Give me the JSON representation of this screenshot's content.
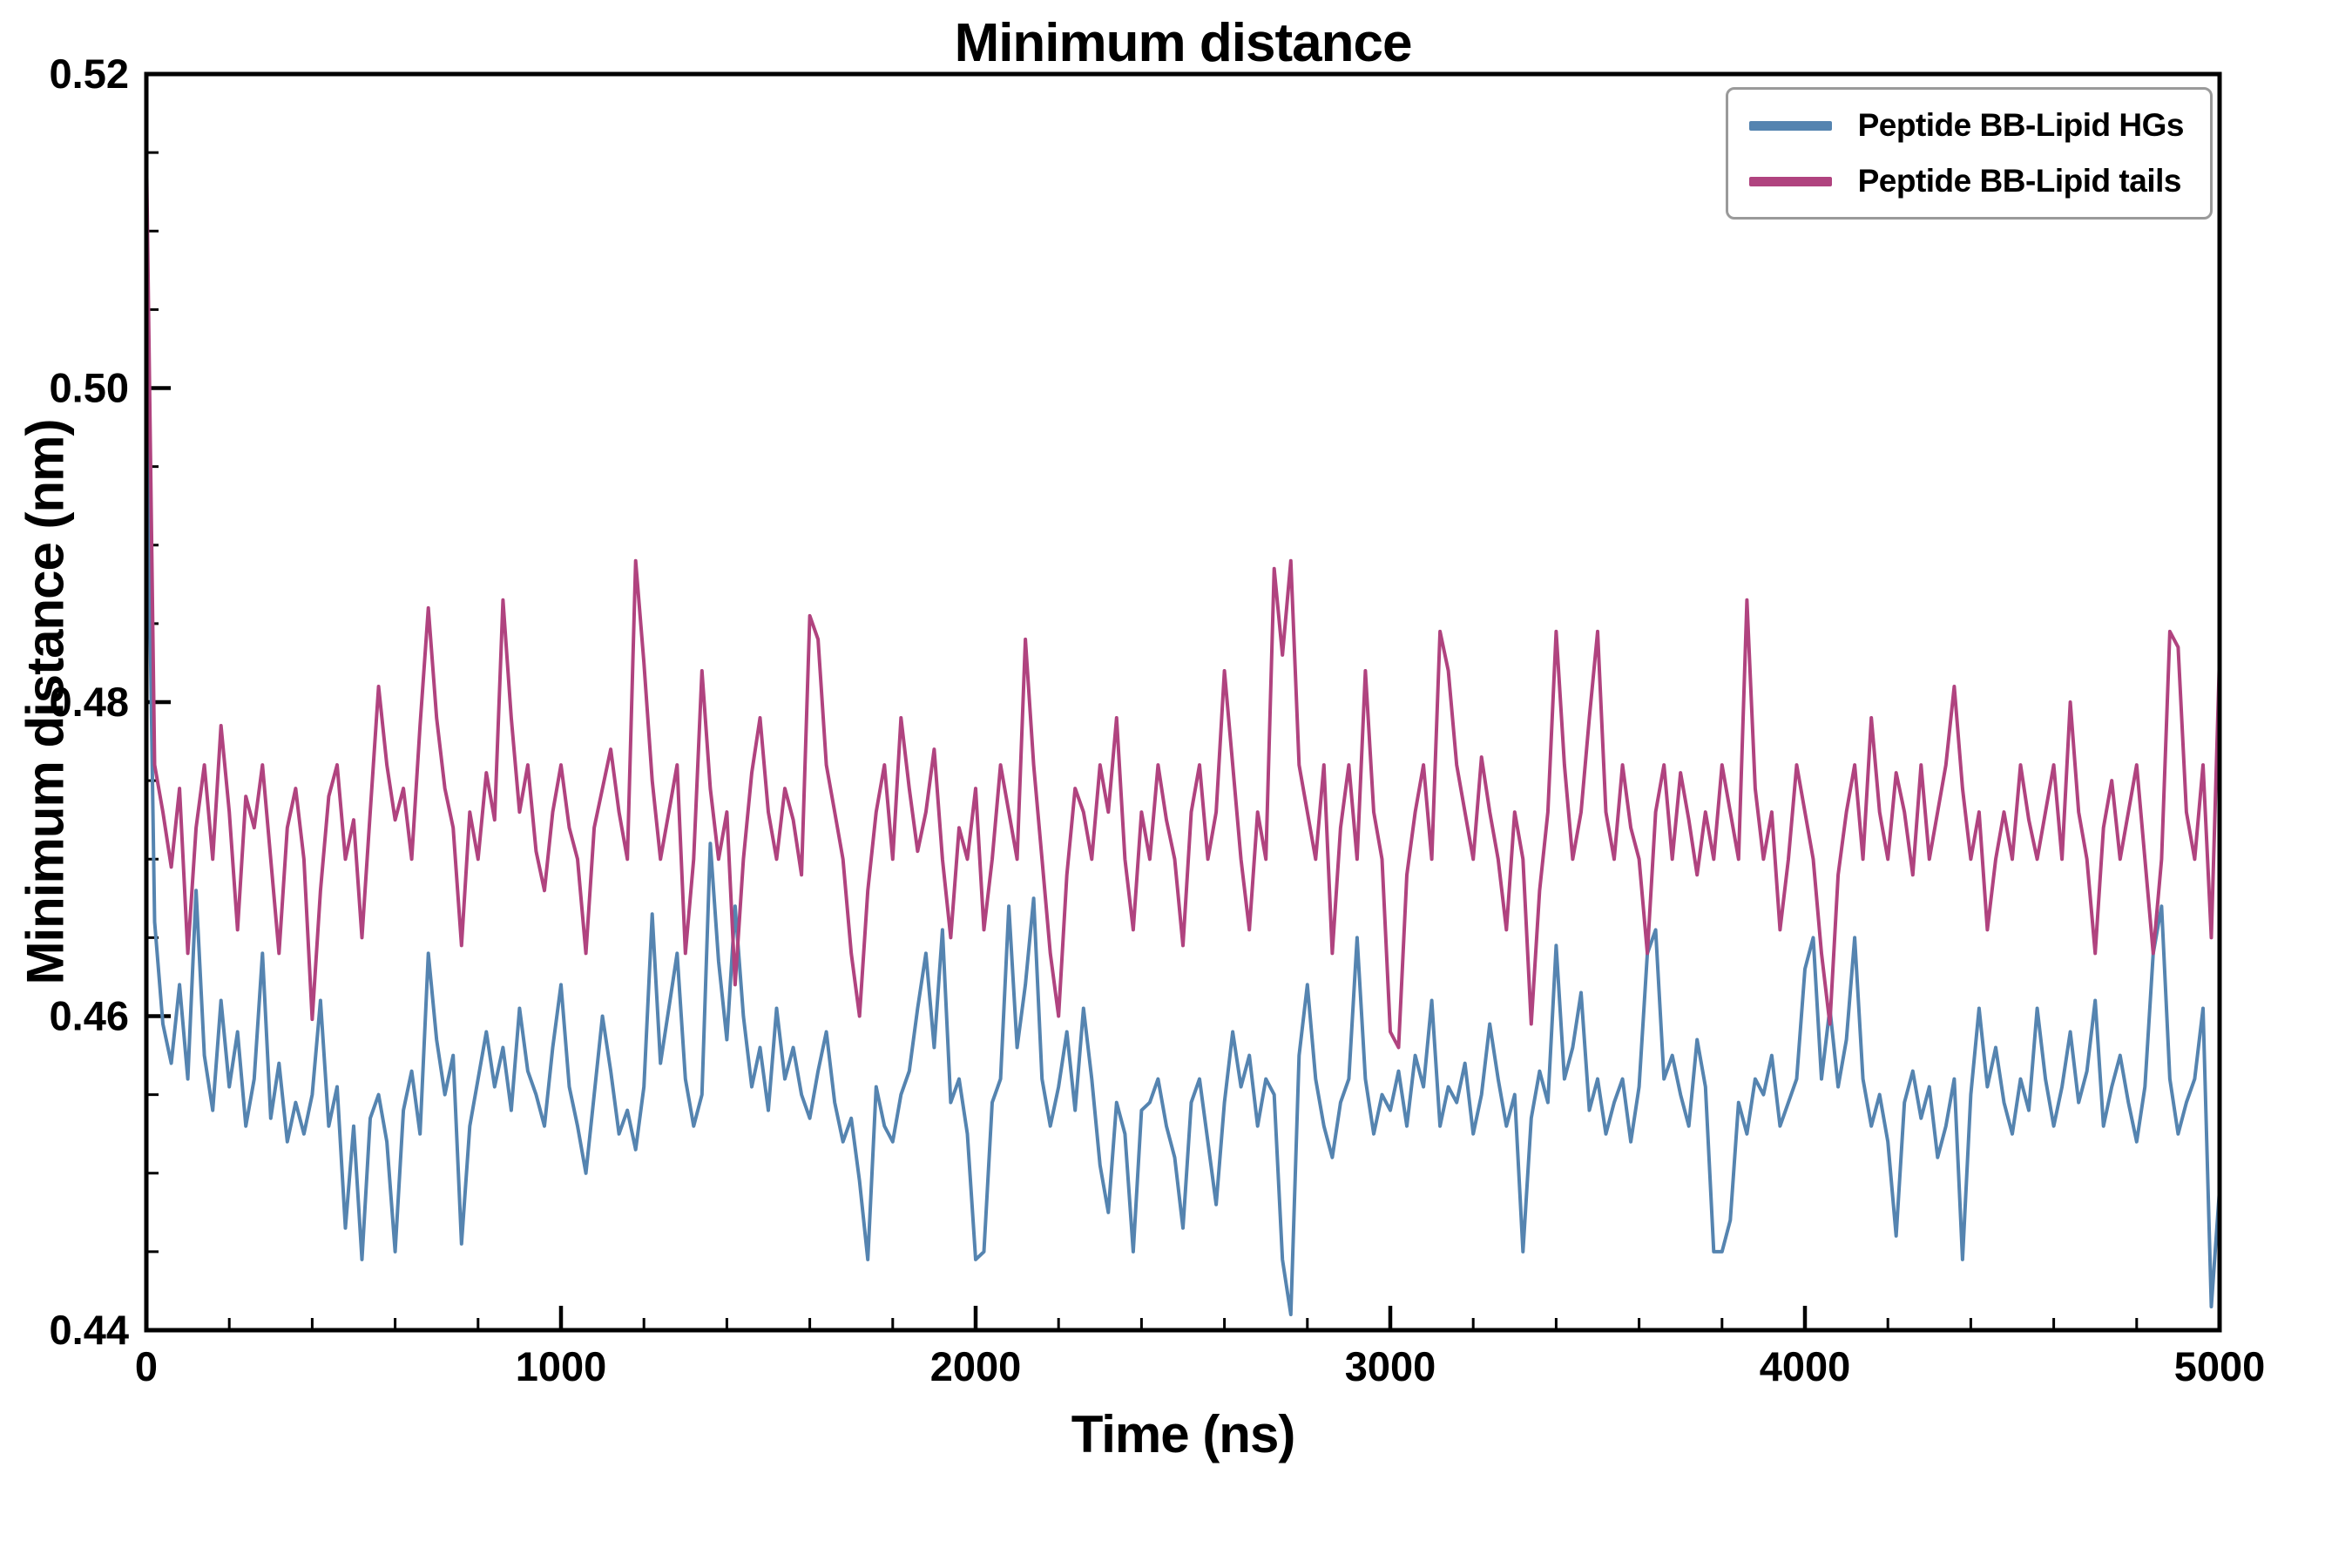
{
  "figure": {
    "background": "#ffffff",
    "frame_color": "#000000"
  },
  "chart_data": {
    "type": "line",
    "title": "Minimum distance",
    "xlabel": "Time (ns)",
    "ylabel": "Minimum distance (nm)",
    "xlim": [
      0,
      5000
    ],
    "ylim": [
      0.44,
      0.52
    ],
    "x_ticks": [
      0,
      1000,
      2000,
      3000,
      4000,
      5000
    ],
    "x_tick_labels": [
      "0",
      "1000",
      "2000",
      "3000",
      "4000",
      "5000"
    ],
    "x_minor_step": 200,
    "y_ticks": [
      0.44,
      0.46,
      0.48,
      0.5,
      0.52
    ],
    "y_tick_labels": [
      "0.44",
      "0.46",
      "0.48",
      "0.50",
      "0.52"
    ],
    "y_minor_step": 0.005,
    "grid": false,
    "legend_position": "upper right",
    "x_start": 0,
    "x_step": 20,
    "series": [
      {
        "name": "Peptide BB-Lipid HGs",
        "color": "#5584b0",
        "values": [
          0.5005,
          0.466,
          0.4595,
          0.457,
          0.462,
          0.456,
          0.468,
          0.4575,
          0.454,
          0.461,
          0.4555,
          0.459,
          0.453,
          0.456,
          0.464,
          0.4535,
          0.457,
          0.452,
          0.4545,
          0.4525,
          0.455,
          0.461,
          0.453,
          0.4555,
          0.4465,
          0.453,
          0.4445,
          0.4535,
          0.455,
          0.452,
          0.445,
          0.454,
          0.4565,
          0.4525,
          0.464,
          0.4585,
          0.455,
          0.4575,
          0.4455,
          0.453,
          0.456,
          0.459,
          0.4555,
          0.458,
          0.454,
          0.4605,
          0.4565,
          0.455,
          0.453,
          0.458,
          0.462,
          0.4555,
          0.453,
          0.45,
          0.455,
          0.46,
          0.4565,
          0.4525,
          0.454,
          0.4515,
          0.4555,
          0.4665,
          0.457,
          0.4605,
          0.464,
          0.456,
          0.453,
          0.455,
          0.471,
          0.4635,
          0.4585,
          0.467,
          0.46,
          0.4555,
          0.458,
          0.454,
          0.4605,
          0.456,
          0.458,
          0.455,
          0.4535,
          0.4565,
          0.459,
          0.4545,
          0.452,
          0.4535,
          0.4495,
          0.4445,
          0.4555,
          0.453,
          0.452,
          0.455,
          0.4565,
          0.4605,
          0.464,
          0.458,
          0.4655,
          0.4545,
          0.456,
          0.4525,
          0.4445,
          0.445,
          0.4545,
          0.456,
          0.467,
          0.458,
          0.462,
          0.4675,
          0.456,
          0.453,
          0.4555,
          0.459,
          0.454,
          0.4605,
          0.456,
          0.4505,
          0.4475,
          0.4545,
          0.4525,
          0.445,
          0.454,
          0.4545,
          0.456,
          0.453,
          0.451,
          0.4465,
          0.4545,
          0.456,
          0.452,
          0.448,
          0.4545,
          0.459,
          0.4555,
          0.4575,
          0.453,
          0.456,
          0.455,
          0.4445,
          0.441,
          0.4575,
          0.462,
          0.456,
          0.453,
          0.451,
          0.4545,
          0.456,
          0.465,
          0.456,
          0.4525,
          0.455,
          0.454,
          0.4565,
          0.453,
          0.4575,
          0.4555,
          0.461,
          0.453,
          0.4555,
          0.4545,
          0.457,
          0.4525,
          0.455,
          0.4595,
          0.456,
          0.453,
          0.455,
          0.445,
          0.4535,
          0.4565,
          0.4545,
          0.4645,
          0.456,
          0.458,
          0.4615,
          0.454,
          0.456,
          0.4525,
          0.4545,
          0.456,
          0.452,
          0.4555,
          0.464,
          0.4655,
          0.456,
          0.4575,
          0.455,
          0.453,
          0.4585,
          0.4555,
          0.445,
          0.445,
          0.447,
          0.4545,
          0.4525,
          0.456,
          0.455,
          0.4575,
          0.453,
          0.4545,
          0.456,
          0.463,
          0.465,
          0.456,
          0.4605,
          0.4555,
          0.4585,
          0.465,
          0.456,
          0.453,
          0.455,
          0.452,
          0.446,
          0.4545,
          0.4565,
          0.4535,
          0.4555,
          0.451,
          0.453,
          0.456,
          0.4445,
          0.455,
          0.4605,
          0.4555,
          0.458,
          0.4545,
          0.4525,
          0.456,
          0.454,
          0.4605,
          0.456,
          0.453,
          0.4555,
          0.459,
          0.4545,
          0.4565,
          0.461,
          0.453,
          0.4555,
          0.4575,
          0.4545,
          0.452,
          0.4555,
          0.464,
          0.467,
          0.456,
          0.4525,
          0.4545,
          0.456,
          0.4605,
          0.4415,
          0.449
        ]
      },
      {
        "name": "Peptide BB-Lipid tails",
        "color": "#b0437f",
        "values": [
          0.5155,
          0.476,
          0.473,
          0.4695,
          0.4745,
          0.464,
          0.472,
          0.476,
          0.47,
          0.4785,
          0.473,
          0.4655,
          0.474,
          0.472,
          0.476,
          0.47,
          0.464,
          0.472,
          0.4745,
          0.47,
          0.4598,
          0.468,
          0.474,
          0.476,
          0.47,
          0.4725,
          0.465,
          0.473,
          0.481,
          0.476,
          0.4725,
          0.4745,
          0.47,
          0.4785,
          0.486,
          0.479,
          0.4745,
          0.472,
          0.4645,
          0.473,
          0.47,
          0.4755,
          0.4725,
          0.4865,
          0.479,
          0.473,
          0.476,
          0.4705,
          0.468,
          0.473,
          0.476,
          0.472,
          0.47,
          0.464,
          0.472,
          0.4745,
          0.477,
          0.473,
          0.47,
          0.489,
          0.4825,
          0.475,
          0.47,
          0.473,
          0.476,
          0.464,
          0.47,
          0.482,
          0.4745,
          0.47,
          0.473,
          0.462,
          0.47,
          0.4755,
          0.479,
          0.473,
          0.47,
          0.4745,
          0.4725,
          0.469,
          0.4855,
          0.484,
          0.476,
          0.473,
          0.47,
          0.464,
          0.46,
          0.468,
          0.473,
          0.476,
          0.47,
          0.479,
          0.4745,
          0.4705,
          0.473,
          0.477,
          0.47,
          0.465,
          0.472,
          0.47,
          0.4745,
          0.4655,
          0.47,
          0.476,
          0.473,
          0.47,
          0.484,
          0.476,
          0.47,
          0.464,
          0.46,
          0.469,
          0.4745,
          0.473,
          0.47,
          0.476,
          0.473,
          0.479,
          0.47,
          0.4655,
          0.473,
          0.47,
          0.476,
          0.4725,
          0.47,
          0.4645,
          0.473,
          0.476,
          0.47,
          0.473,
          0.482,
          0.476,
          0.47,
          0.4655,
          0.473,
          0.47,
          0.4885,
          0.483,
          0.489,
          0.476,
          0.473,
          0.47,
          0.476,
          0.464,
          0.472,
          0.476,
          0.47,
          0.482,
          0.473,
          0.47,
          0.459,
          0.458,
          0.469,
          0.473,
          0.476,
          0.47,
          0.4845,
          0.482,
          0.476,
          0.473,
          0.47,
          0.4765,
          0.473,
          0.47,
          0.4655,
          0.473,
          0.47,
          0.4595,
          0.468,
          0.473,
          0.4845,
          0.476,
          0.47,
          0.473,
          0.479,
          0.4845,
          0.473,
          0.47,
          0.476,
          0.472,
          0.47,
          0.464,
          0.473,
          0.476,
          0.47,
          0.4755,
          0.4725,
          0.469,
          0.473,
          0.47,
          0.476,
          0.473,
          0.47,
          0.4865,
          0.4745,
          0.47,
          0.473,
          0.4655,
          0.47,
          0.476,
          0.473,
          0.47,
          0.464,
          0.4595,
          0.469,
          0.473,
          0.476,
          0.47,
          0.479,
          0.473,
          0.47,
          0.4755,
          0.473,
          0.469,
          0.476,
          0.47,
          0.473,
          0.476,
          0.481,
          0.4745,
          0.47,
          0.473,
          0.4655,
          0.47,
          0.473,
          0.47,
          0.476,
          0.4725,
          0.47,
          0.473,
          0.476,
          0.47,
          0.48,
          0.473,
          0.47,
          0.464,
          0.472,
          0.475,
          0.47,
          0.473,
          0.476,
          0.47,
          0.464,
          0.47,
          0.4845,
          0.4835,
          0.473,
          0.47,
          0.476,
          0.465,
          0.483
        ]
      }
    ]
  }
}
